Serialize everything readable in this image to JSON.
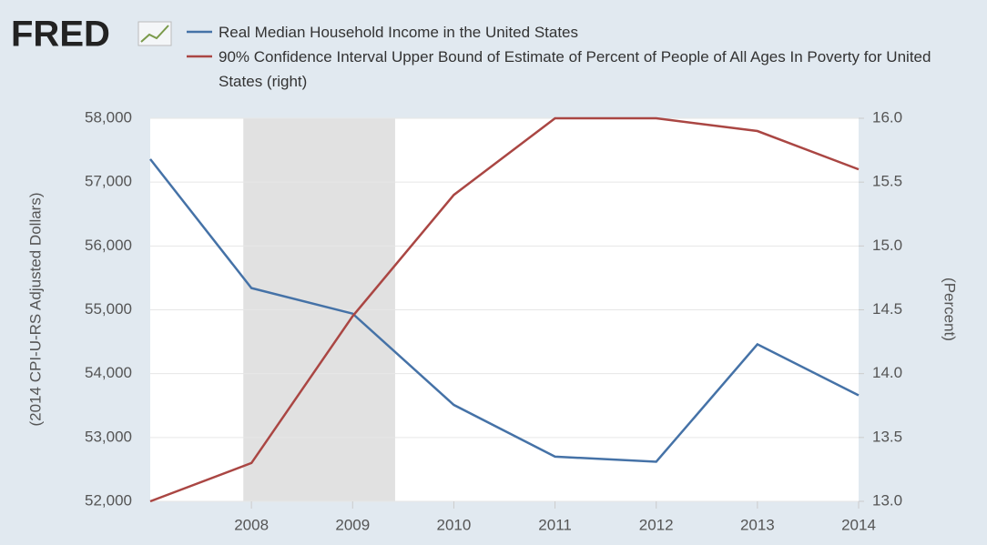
{
  "chart_data": {
    "type": "line",
    "logo": "FRED",
    "x": [
      2007,
      2008,
      2009,
      2010,
      2011,
      2012,
      2013,
      2014
    ],
    "xlim": [
      2007,
      2014
    ],
    "xticks": [
      2008,
      2009,
      2010,
      2011,
      2012,
      2013,
      2014
    ],
    "ylabel": "(2014 CPI-U-RS Adjusted Dollars)",
    "y2label": "(Percent)",
    "ylim": [
      52000,
      58000
    ],
    "yticks": [
      {
        "value": 52000,
        "label": "52,000"
      },
      {
        "value": 53000,
        "label": "53,000"
      },
      {
        "value": 54000,
        "label": "54,000"
      },
      {
        "value": 55000,
        "label": "55,000"
      },
      {
        "value": 56000,
        "label": "56,000"
      },
      {
        "value": 57000,
        "label": "57,000"
      },
      {
        "value": 58000,
        "label": "58,000"
      }
    ],
    "y2lim": [
      13,
      16
    ],
    "y2ticks": [
      {
        "value": 13,
        "label": "13.0"
      },
      13.5,
      {
        "value": 14,
        "label": "14.0"
      },
      14.5,
      {
        "value": 15,
        "label": "15.0"
      },
      15.5,
      {
        "value": 16,
        "label": "16.0"
      }
    ],
    "shaded_ranges": [
      [
        2007.92,
        2009.42
      ]
    ],
    "grid": true,
    "series": [
      {
        "name": "Real Median Household Income in the United States",
        "color": "#4572a7",
        "values": [
          57360,
          55340,
          54940,
          53510,
          52700,
          52620,
          54460,
          53660
        ]
      },
      {
        "name": "90% Confidence Interval Upper Bound of Estimate of Percent of People of All Ages In Poverty for United States (right)",
        "color": "#aa4643",
        "axis": "y2",
        "values": [
          13.0,
          13.3,
          14.45,
          15.4,
          16.0,
          16.0,
          15.9,
          15.6
        ]
      }
    ]
  }
}
